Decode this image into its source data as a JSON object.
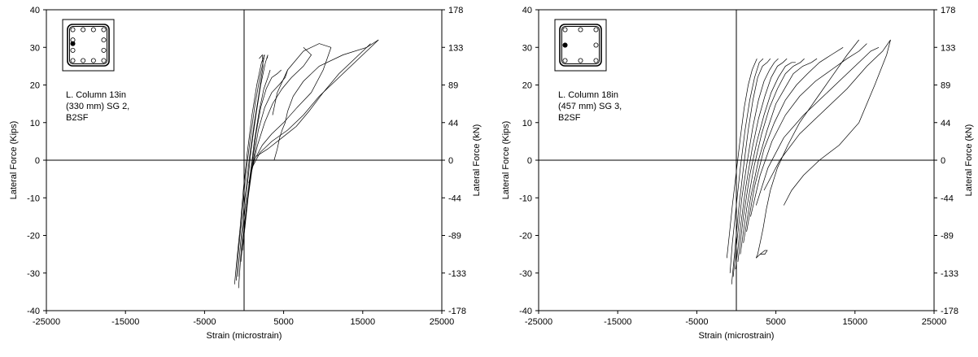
{
  "chart_data": [
    {
      "type": "line",
      "annotation_lines": [
        "L. Column 13in",
        "(330 mm) SG 2,",
        "B2SF"
      ],
      "xlabel": "Strain (microstrain)",
      "ylabel_left": "Lateral Force (Kips)",
      "ylabel_right": "Lateral Force (kN)",
      "xlim": [
        -25000,
        25000
      ],
      "ylim": [
        -40,
        40
      ],
      "x_ticks": [
        -25000,
        -15000,
        -5000,
        5000,
        15000,
        25000
      ],
      "y_ticks": [
        -40,
        -30,
        -20,
        -10,
        0,
        10,
        20,
        30,
        40
      ],
      "y_ticks_right": [
        {
          "value": 40,
          "label": "178"
        },
        {
          "value": 30,
          "label": "133"
        },
        {
          "value": 20,
          "label": "89"
        },
        {
          "value": 10,
          "label": "44"
        },
        {
          "value": 0,
          "label": "0"
        },
        {
          "value": -10,
          "label": "-44"
        },
        {
          "value": -20,
          "label": "-89"
        },
        {
          "value": -30,
          "label": "-133"
        },
        {
          "value": -40,
          "label": "-178"
        }
      ],
      "grid": false,
      "section_inset": {
        "bars_per_face": 4,
        "gauge_side": "left",
        "gauge_position": 0.45
      },
      "series": [
        {
          "x": [
            -1200,
            -900,
            -500,
            -100,
            400,
            1000,
            1600,
            2200,
            2600
          ],
          "y": [
            -33,
            -26,
            -18,
            -8,
            2,
            12,
            20,
            26,
            28
          ]
        },
        {
          "x": [
            -1000,
            -700,
            -300,
            200,
            800,
            1400,
            2000,
            2500,
            2500
          ],
          "y": [
            -32,
            -24,
            -15,
            -4,
            6,
            15,
            22,
            27,
            28
          ]
        },
        {
          "x": [
            -800,
            -400,
            100,
            700,
            1300,
            1900,
            2400,
            2300,
            1900
          ],
          "y": [
            -31,
            -21,
            -10,
            1,
            10,
            18,
            25,
            28,
            27
          ]
        },
        {
          "x": [
            -700,
            -300,
            300,
            900,
            1500,
            2100,
            2700,
            3000,
            2900
          ],
          "y": [
            -34,
            -22,
            -9,
            3,
            12,
            20,
            26,
            28,
            27
          ]
        },
        {
          "x": [
            -400,
            100,
            700,
            1300,
            1900,
            2500,
            3000,
            3300,
            3300
          ],
          "y": [
            -27,
            -16,
            -5,
            5,
            13,
            19,
            22,
            24,
            24
          ]
        },
        {
          "x": [
            -200,
            300,
            900,
            1500,
            2100,
            2800,
            3500,
            4200,
            4700
          ],
          "y": [
            -24,
            -13,
            -3,
            7,
            14,
            19,
            22,
            23,
            24
          ]
        },
        {
          "x": [
            0,
            500,
            1100,
            1800,
            2600,
            3500,
            4400,
            5200,
            5500
          ],
          "y": [
            -20,
            -10,
            -1,
            8,
            14,
            18,
            20,
            22,
            24
          ]
        },
        {
          "x": [
            300,
            900,
            1700,
            2600,
            3600,
            4800,
            6000,
            7500,
            8500,
            7500
          ],
          "y": [
            -12,
            -3,
            4,
            10,
            15,
            19,
            22,
            25,
            28,
            30
          ]
        },
        {
          "x": [
            600,
            1300,
            2300,
            3500,
            5000,
            6700,
            8500,
            10000,
            11000
          ],
          "y": [
            -6,
            0,
            4,
            7,
            10,
            14,
            18,
            24,
            30
          ]
        },
        {
          "x": [
            11000,
            9500,
            7500,
            5500,
            4200,
            3600
          ],
          "y": [
            30,
            31,
            29,
            24,
            18,
            12
          ]
        },
        {
          "x": [
            1000,
            2000,
            3500,
            5500,
            7500,
            9500,
            12000,
            14500,
            16500,
            17000
          ],
          "y": [
            -2,
            2,
            5,
            8,
            12,
            17,
            22,
            27,
            31,
            32
          ]
        },
        {
          "x": [
            17000,
            15500,
            12500,
            9500,
            7500,
            6200,
            5500
          ],
          "y": [
            32,
            30,
            28,
            25,
            21,
            17,
            13
          ]
        },
        {
          "x": [
            1500,
            3000,
            4800,
            6600,
            8200,
            10000,
            12000,
            14000,
            15500,
            16000
          ],
          "y": [
            1,
            3,
            6,
            9,
            13,
            18,
            23,
            27,
            30,
            31
          ]
        },
        {
          "x": [
            5500,
            5200,
            4800,
            4500,
            4200,
            3800
          ],
          "y": [
            13,
            10,
            8,
            6,
            3,
            0
          ]
        }
      ]
    },
    {
      "type": "line",
      "annotation_lines": [
        "L. Column 18in",
        "(457 mm) SG 3,",
        "B2SF"
      ],
      "xlabel": "Strain (microstrain)",
      "ylabel_left": "Lateral Force (Kips)",
      "ylabel_right": "Lateral Force (kN)",
      "xlim": [
        -25000,
        25000
      ],
      "ylim": [
        -40,
        40
      ],
      "x_ticks": [
        -25000,
        -15000,
        -5000,
        5000,
        15000,
        25000
      ],
      "y_ticks": [
        -40,
        -30,
        -20,
        -10,
        0,
        10,
        20,
        30,
        40
      ],
      "y_ticks_right": [
        {
          "value": 40,
          "label": "178"
        },
        {
          "value": 30,
          "label": "133"
        },
        {
          "value": 20,
          "label": "89"
        },
        {
          "value": 10,
          "label": "44"
        },
        {
          "value": 0,
          "label": "0"
        },
        {
          "value": -10,
          "label": "-44"
        },
        {
          "value": -20,
          "label": "-89"
        },
        {
          "value": -30,
          "label": "-133"
        },
        {
          "value": -40,
          "label": "-178"
        }
      ],
      "grid": false,
      "section_inset": {
        "bars_per_face": 3,
        "gauge_side": "left",
        "gauge_position": 0.5
      },
      "series": [
        {
          "x": [
            -1200,
            -900,
            -500,
            0,
            500,
            1000,
            1500,
            2000,
            2600
          ],
          "y": [
            -26,
            -20,
            -12,
            -3,
            6,
            14,
            20,
            24,
            27
          ]
        },
        {
          "x": [
            -800,
            -500,
            0,
            500,
            1100,
            1700,
            2300,
            2900,
            3400
          ],
          "y": [
            -30,
            -22,
            -12,
            -2,
            8,
            16,
            22,
            26,
            27
          ]
        },
        {
          "x": [
            -600,
            -200,
            300,
            900,
            1500,
            2100,
            2700,
            3300,
            3900,
            4300
          ],
          "y": [
            -33,
            -24,
            -13,
            -2,
            8,
            16,
            22,
            25,
            26,
            27
          ]
        },
        {
          "x": [
            -400,
            100,
            700,
            1400,
            2100,
            2800,
            3500,
            4200,
            4800,
            5300
          ],
          "y": [
            -31,
            -21,
            -10,
            0,
            9,
            16,
            21,
            24,
            26,
            27
          ]
        },
        {
          "x": [
            -100,
            500,
            1200,
            2000,
            2800,
            3600,
            4400,
            5200,
            5900,
            6400
          ],
          "y": [
            -29,
            -18,
            -7,
            3,
            11,
            17,
            22,
            25,
            26,
            27
          ]
        },
        {
          "x": [
            200,
            900,
            1700,
            2600,
            3500,
            4400,
            5300,
            6200,
            7000,
            7500
          ],
          "y": [
            -27,
            -15,
            -4,
            5,
            12,
            18,
            22,
            25,
            26,
            26
          ]
        },
        {
          "x": [
            500,
            1300,
            2200,
            3200,
            4200,
            5200,
            6200,
            7200,
            8100,
            8600
          ],
          "y": [
            -25,
            -13,
            -2,
            7,
            14,
            19,
            23,
            25,
            26,
            27
          ]
        },
        {
          "x": [
            900,
            1800,
            2800,
            3900,
            5000,
            6100,
            7200,
            8400,
            9500,
            10200
          ],
          "y": [
            -22,
            -10,
            0,
            8,
            15,
            19,
            23,
            25,
            26,
            27
          ]
        },
        {
          "x": [
            1300,
            2300,
            3500,
            4800,
            6200,
            7600,
            9000,
            10500,
            12000,
            13500
          ],
          "y": [
            -19,
            -7,
            3,
            10,
            16,
            20,
            23,
            26,
            28,
            30
          ]
        },
        {
          "x": [
            1800,
            3000,
            4500,
            6200,
            8000,
            10000,
            12000,
            14000,
            15500,
            16500
          ],
          "y": [
            -15,
            -4,
            5,
            12,
            17,
            21,
            24,
            27,
            29,
            31
          ]
        },
        {
          "x": [
            2500,
            4000,
            6000,
            8500,
            11000,
            13500,
            15500,
            17000,
            18000
          ],
          "y": [
            -12,
            -2,
            6,
            12,
            17,
            22,
            26,
            29,
            30
          ]
        },
        {
          "x": [
            3500,
            5500,
            8000,
            11000,
            14000,
            16500,
            18500,
            19500
          ],
          "y": [
            -8,
            0,
            7,
            13,
            19,
            25,
            29,
            32
          ]
        },
        {
          "x": [
            19500,
            19000,
            17500,
            15500,
            13000,
            10500,
            8500,
            7000,
            6000
          ],
          "y": [
            32,
            28,
            20,
            10,
            4,
            0,
            -4,
            -8,
            -12
          ]
        },
        {
          "x": [
            15500,
            14000,
            12000,
            10000,
            8000,
            6500,
            5200,
            4300
          ],
          "y": [
            32,
            28,
            22,
            16,
            10,
            4,
            -2,
            -8
          ]
        },
        {
          "x": [
            4300,
            3800,
            3400,
            3000,
            2800,
            2700,
            2500
          ],
          "y": [
            -8,
            -13,
            -18,
            -22,
            -24,
            -25,
            -26
          ]
        },
        {
          "x": [
            2500,
            3000,
            3600,
            3900,
            3600,
            3000
          ],
          "y": [
            -26,
            -25,
            -25,
            -24,
            -24,
            -25
          ]
        }
      ]
    }
  ]
}
